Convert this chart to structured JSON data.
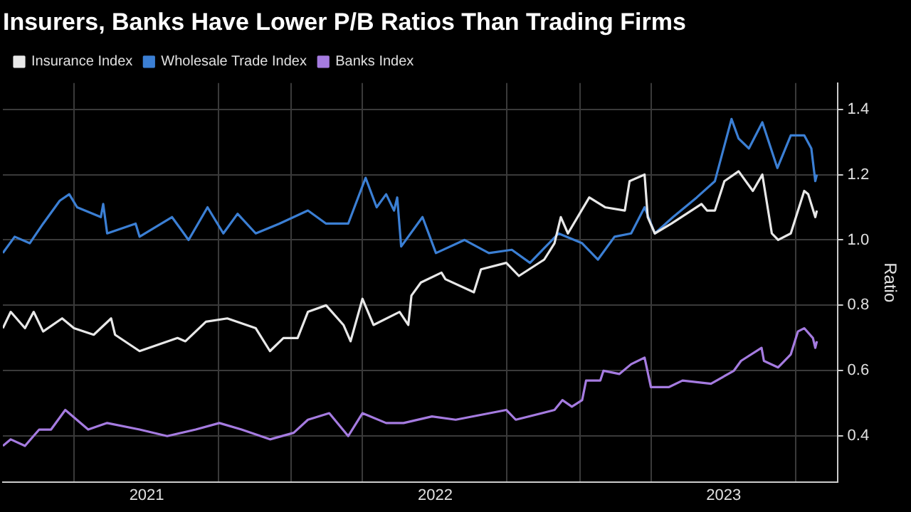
{
  "chart_data": {
    "type": "line",
    "title": "Insurers, Banks Have Lower P/B Ratios Than Trading Firms",
    "ylabel": "Ratio",
    "legend": "top left",
    "grid": true,
    "xlim": [
      "2021-01-01",
      "2023-11-23"
    ],
    "xticks": [
      {
        "value": "2021-04-01",
        "label": null
      },
      {
        "value": "2021-07-02",
        "label": "2021"
      },
      {
        "value": "2021-10-01",
        "label": null
      },
      {
        "value": "2022-01-01",
        "label": null
      },
      {
        "value": "2022-04-01",
        "label": null
      },
      {
        "value": "2022-07-02",
        "label": "2022"
      },
      {
        "value": "2022-10-01",
        "label": null
      },
      {
        "value": "2023-01-01",
        "label": null
      },
      {
        "value": "2023-04-01",
        "label": null
      },
      {
        "value": "2023-07-02",
        "label": "2023"
      },
      {
        "value": "2023-10-01",
        "label": null
      }
    ],
    "ylim": [
      0.26,
      1.48
    ],
    "yticks": [
      0.4,
      0.6,
      0.8,
      {
        "value": 1,
        "label": "1.0"
      },
      1.2,
      1.4
    ],
    "series": [
      {
        "name": "Insurance Index",
        "color": "#e8e8e8",
        "x": [
          "2021-01-01",
          "2021-01-11",
          "2021-01-29",
          "2021-02-09",
          "2021-02-21",
          "2021-03-17",
          "2021-04-01",
          "2021-04-26",
          "2021-05-18",
          "2021-05-23",
          "2021-06-23",
          "2021-08-10",
          "2021-08-20",
          "2021-09-15",
          "2021-10-12",
          "2021-11-17",
          "2021-12-05",
          "2021-12-22",
          "2022-01-09",
          "2022-01-22",
          "2022-02-14",
          "2022-03-08",
          "2022-03-17",
          "2022-04-01",
          "2022-04-15",
          "2022-05-18",
          "2022-05-29",
          "2022-06-02",
          "2022-06-14",
          "2022-07-10",
          "2022-07-15",
          "2022-08-20",
          "2022-08-29",
          "2022-09-30",
          "2022-10-16",
          "2022-11-17",
          "2022-11-30",
          "2022-12-08",
          "2022-12-17",
          "2023-01-13",
          "2023-02-02",
          "2023-02-27",
          "2023-03-05",
          "2023-03-24",
          "2023-03-28",
          "2023-04-06",
          "2023-04-27",
          "2023-05-16",
          "2023-06-04",
          "2023-06-11",
          "2023-06-21",
          "2023-07-03",
          "2023-07-21",
          "2023-08-08",
          "2023-08-20",
          "2023-09-01",
          "2023-09-09",
          "2023-09-25",
          "2023-10-12",
          "2023-10-17",
          "2023-10-26",
          "2023-10-28"
        ],
        "values": [
          0.73,
          0.78,
          0.73,
          0.78,
          0.72,
          0.76,
          0.73,
          0.71,
          0.76,
          0.71,
          0.66,
          0.7,
          0.69,
          0.75,
          0.76,
          0.73,
          0.66,
          0.7,
          0.7,
          0.78,
          0.8,
          0.74,
          0.69,
          0.82,
          0.74,
          0.78,
          0.74,
          0.83,
          0.87,
          0.9,
          0.88,
          0.84,
          0.91,
          0.93,
          0.89,
          0.94,
          0.99,
          1.07,
          1.02,
          1.13,
          1.1,
          1.09,
          1.18,
          1.2,
          1.07,
          1.02,
          1.05,
          1.08,
          1.11,
          1.09,
          1.09,
          1.18,
          1.21,
          1.15,
          1.2,
          1.02,
          1.0,
          1.02,
          1.15,
          1.14,
          1.07,
          1.09
        ]
      },
      {
        "name": "Wholesale Trade Index",
        "color": "#3b7fd4",
        "x": [
          "2021-01-01",
          "2021-01-16",
          "2021-02-04",
          "2021-02-21",
          "2021-03-14",
          "2021-03-26",
          "2021-04-05",
          "2021-05-05",
          "2021-05-08",
          "2021-05-13",
          "2021-06-18",
          "2021-06-23",
          "2021-08-03",
          "2021-08-24",
          "2021-09-17",
          "2021-10-07",
          "2021-10-25",
          "2021-11-17",
          "2021-12-17",
          "2022-01-22",
          "2022-02-14",
          "2022-03-14",
          "2022-04-05",
          "2022-04-19",
          "2022-05-01",
          "2022-05-11",
          "2022-05-15",
          "2022-05-20",
          "2022-06-16",
          "2022-07-03",
          "2022-08-08",
          "2022-09-08",
          "2022-10-07",
          "2022-10-30",
          "2022-11-23",
          "2022-12-05",
          "2023-01-04",
          "2023-01-24",
          "2023-02-14",
          "2023-03-07",
          "2023-03-24",
          "2023-04-06",
          "2023-04-29",
          "2023-05-29",
          "2023-06-21",
          "2023-07-12",
          "2023-07-21",
          "2023-08-03",
          "2023-08-20",
          "2023-09-08",
          "2023-09-25",
          "2023-10-12",
          "2023-10-21",
          "2023-10-26",
          "2023-10-28"
        ],
        "values": [
          0.96,
          1.01,
          0.99,
          1.05,
          1.12,
          1.14,
          1.1,
          1.07,
          1.11,
          1.02,
          1.05,
          1.01,
          1.07,
          1.0,
          1.1,
          1.02,
          1.08,
          1.02,
          1.05,
          1.09,
          1.05,
          1.05,
          1.19,
          1.1,
          1.14,
          1.09,
          1.13,
          0.98,
          1.07,
          0.96,
          1.0,
          0.96,
          0.97,
          0.93,
          0.99,
          1.02,
          0.99,
          0.94,
          1.01,
          1.02,
          1.1,
          1.02,
          1.07,
          1.13,
          1.18,
          1.37,
          1.31,
          1.28,
          1.36,
          1.22,
          1.32,
          1.32,
          1.28,
          1.18,
          1.2
        ]
      },
      {
        "name": "Banks Index",
        "color": "#a57be0",
        "x": [
          "2021-01-01",
          "2021-01-11",
          "2021-01-29",
          "2021-02-16",
          "2021-03-03",
          "2021-03-21",
          "2021-04-19",
          "2021-05-13",
          "2021-06-23",
          "2021-07-28",
          "2021-09-02",
          "2021-10-02",
          "2021-10-30",
          "2021-12-05",
          "2022-01-04",
          "2022-01-22",
          "2022-02-18",
          "2022-03-14",
          "2022-04-01",
          "2022-05-01",
          "2022-05-23",
          "2022-06-28",
          "2022-07-28",
          "2022-09-30",
          "2022-10-12",
          "2022-11-30",
          "2022-12-10",
          "2022-12-22",
          "2023-01-04",
          "2023-01-09",
          "2023-01-27",
          "2023-01-31",
          "2023-02-20",
          "2023-03-07",
          "2023-03-24",
          "2023-04-01",
          "2023-04-24",
          "2023-05-11",
          "2023-06-16",
          "2023-07-15",
          "2023-07-24",
          "2023-08-19",
          "2023-08-22",
          "2023-09-09",
          "2023-09-25",
          "2023-10-04",
          "2023-10-12",
          "2023-10-23",
          "2023-10-26",
          "2023-10-28"
        ],
        "values": [
          0.37,
          0.39,
          0.37,
          0.42,
          0.42,
          0.48,
          0.42,
          0.44,
          0.42,
          0.4,
          0.42,
          0.44,
          0.42,
          0.39,
          0.41,
          0.45,
          0.47,
          0.4,
          0.47,
          0.44,
          0.44,
          0.46,
          0.45,
          0.48,
          0.45,
          0.48,
          0.51,
          0.49,
          0.51,
          0.57,
          0.57,
          0.6,
          0.59,
          0.62,
          0.64,
          0.55,
          0.55,
          0.57,
          0.56,
          0.6,
          0.63,
          0.67,
          0.63,
          0.61,
          0.65,
          0.72,
          0.73,
          0.7,
          0.67,
          0.69
        ]
      }
    ]
  }
}
